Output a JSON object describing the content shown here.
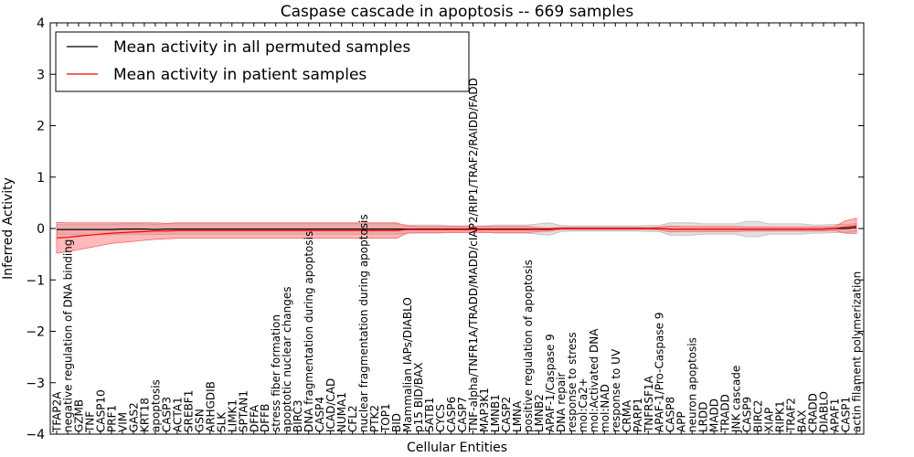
{
  "chart_data": {
    "type": "line",
    "title": "Caspase cascade in apoptosis -- 669 samples",
    "xlabel": "Cellular Entities",
    "ylabel": "Inferred Activity",
    "ylim": [
      -4,
      4
    ],
    "yticks": [
      "4",
      "3",
      "2",
      "1",
      "0",
      "−1",
      "−2",
      "−3",
      "−4"
    ],
    "legend_position": "top-left",
    "categories": [
      "TFAP2A",
      "negative regulation of DNA binding",
      "GZMB",
      "TNF",
      "CASP10",
      "PRF1",
      "VIM",
      "GAS2",
      "KRT18",
      "apoptosis",
      "CASP3",
      "ACTA1",
      "SREBF1",
      "GSN",
      "ARHGDIB",
      "SLK",
      "LIMK1",
      "SPTAN1",
      "DFFA",
      "DFFB",
      "stress fiber formation",
      "apoptotic nuclear changes",
      "BIRC3",
      "DNA fragmentation during apoptosis",
      "CASP4",
      "ICAD/CAD",
      "NUMA1",
      "CFL2",
      "nuclear fragmentation during apoptosis",
      "PTK2",
      "TOP1",
      "BID",
      "Mammalian IAPs/DIABLO",
      "p15 BID/BAX",
      "SATB1",
      "CYCS",
      "CASP6",
      "CASP7",
      "TNF-alpha/TNFR1A/TRADD/MADD/cIAP2/RIP1/TRAF2/RAIDD/FADD",
      "MAP3K1",
      "LMNB1",
      "CASP2",
      "LMNA",
      "positive regulation of apoptosis",
      "LMNB2",
      "APAF-1/Caspase 9",
      "DNA repair",
      "response to stress",
      "mol:Ca2+",
      "mol:Activated DNA",
      "mol:NAD",
      "response to UV",
      "CRMA",
      "PARP1",
      "TNFRSF1A",
      "APAF-1/Pro-Caspase 9",
      "CASP8",
      "APP",
      "neuron apoptosis",
      "LRDD",
      "MADD",
      "TRADD",
      "JNK cascade",
      "CASP9",
      "BIRC2",
      "XIAP",
      "RIPK1",
      "TRAF2",
      "BAX",
      "CRADD",
      "DIABLO",
      "APAF1",
      "CASP1",
      "actin filament polymerization"
    ],
    "series": [
      {
        "name": "Mean activity in all permuted samples",
        "color": "#000000",
        "band_color": "#bbbbbb",
        "values": [
          -0.02,
          -0.02,
          -0.02,
          -0.02,
          -0.02,
          -0.02,
          -0.01,
          -0.01,
          -0.01,
          -0.02,
          -0.01,
          -0.01,
          -0.01,
          -0.01,
          -0.01,
          -0.01,
          -0.01,
          -0.01,
          -0.01,
          -0.01,
          -0.01,
          -0.01,
          -0.01,
          -0.01,
          -0.01,
          -0.01,
          -0.01,
          -0.01,
          -0.01,
          -0.01,
          -0.01,
          -0.01,
          -0.01,
          -0.01,
          -0.01,
          -0.01,
          -0.01,
          -0.01,
          -0.01,
          -0.01,
          -0.01,
          -0.01,
          -0.01,
          -0.01,
          -0.01,
          -0.01,
          0,
          0,
          0,
          0,
          0,
          0,
          0,
          0,
          0,
          0,
          -0.01,
          -0.01,
          -0.01,
          -0.01,
          -0.01,
          -0.01,
          -0.01,
          -0.01,
          -0.01,
          -0.01,
          -0.01,
          -0.01,
          -0.01,
          -0.01,
          -0.01,
          0,
          0,
          0.02
        ],
        "spread": [
          0.1,
          0.1,
          0.1,
          0.1,
          0.1,
          0.1,
          0.1,
          0.1,
          0.1,
          0.1,
          0.1,
          0.1,
          0.1,
          0.1,
          0.1,
          0.1,
          0.1,
          0.1,
          0.1,
          0.1,
          0.1,
          0.1,
          0.1,
          0.1,
          0.1,
          0.1,
          0.1,
          0.1,
          0.1,
          0.1,
          0.1,
          0.1,
          0.08,
          0.08,
          0.08,
          0.08,
          0.06,
          0.06,
          0.06,
          0.06,
          0.08,
          0.08,
          0.08,
          0.08,
          0.1,
          0.12,
          0.06,
          0.05,
          0.05,
          0.05,
          0.05,
          0.05,
          0.05,
          0.05,
          0.06,
          0.06,
          0.12,
          0.12,
          0.12,
          0.1,
          0.1,
          0.1,
          0.1,
          0.15,
          0.15,
          0.1,
          0.1,
          0.1,
          0.1,
          0.08,
          0.08,
          0.08,
          0.08,
          0.08
        ]
      },
      {
        "name": "Mean activity in patient samples",
        "color": "#ff0000",
        "band_color": "#ff6666",
        "values": [
          -0.18,
          -0.17,
          -0.15,
          -0.13,
          -0.11,
          -0.09,
          -0.08,
          -0.07,
          -0.06,
          -0.05,
          -0.05,
          -0.04,
          -0.04,
          -0.04,
          -0.04,
          -0.04,
          -0.04,
          -0.04,
          -0.04,
          -0.04,
          -0.04,
          -0.04,
          -0.04,
          -0.04,
          -0.04,
          -0.04,
          -0.04,
          -0.04,
          -0.04,
          -0.04,
          -0.04,
          -0.04,
          -0.02,
          -0.02,
          -0.02,
          -0.02,
          -0.02,
          -0.02,
          -0.02,
          -0.02,
          -0.02,
          -0.02,
          -0.02,
          -0.02,
          -0.02,
          -0.02,
          0,
          0,
          0,
          0,
          0,
          0,
          0,
          0,
          0,
          0,
          -0.01,
          -0.01,
          -0.01,
          -0.01,
          -0.01,
          -0.01,
          -0.01,
          -0.01,
          -0.01,
          -0.01,
          -0.01,
          -0.01,
          -0.01,
          -0.01,
          -0.01,
          0,
          0.03,
          0.05
        ],
        "spread": [
          0.3,
          0.28,
          0.26,
          0.24,
          0.22,
          0.2,
          0.19,
          0.18,
          0.17,
          0.16,
          0.15,
          0.15,
          0.15,
          0.15,
          0.15,
          0.15,
          0.15,
          0.15,
          0.15,
          0.15,
          0.15,
          0.15,
          0.15,
          0.15,
          0.15,
          0.15,
          0.15,
          0.15,
          0.15,
          0.15,
          0.15,
          0.15,
          0.07,
          0.06,
          0.06,
          0.06,
          0.06,
          0.06,
          0.06,
          0.06,
          0.06,
          0.06,
          0.06,
          0.06,
          0.04,
          0.03,
          0.02,
          0.02,
          0.02,
          0.02,
          0.02,
          0.02,
          0.02,
          0.02,
          0.02,
          0.03,
          0.06,
          0.05,
          0.05,
          0.05,
          0.05,
          0.05,
          0.05,
          0.04,
          0.04,
          0.04,
          0.04,
          0.04,
          0.04,
          0.04,
          0.04,
          0.04,
          0.12,
          0.15
        ]
      }
    ]
  }
}
